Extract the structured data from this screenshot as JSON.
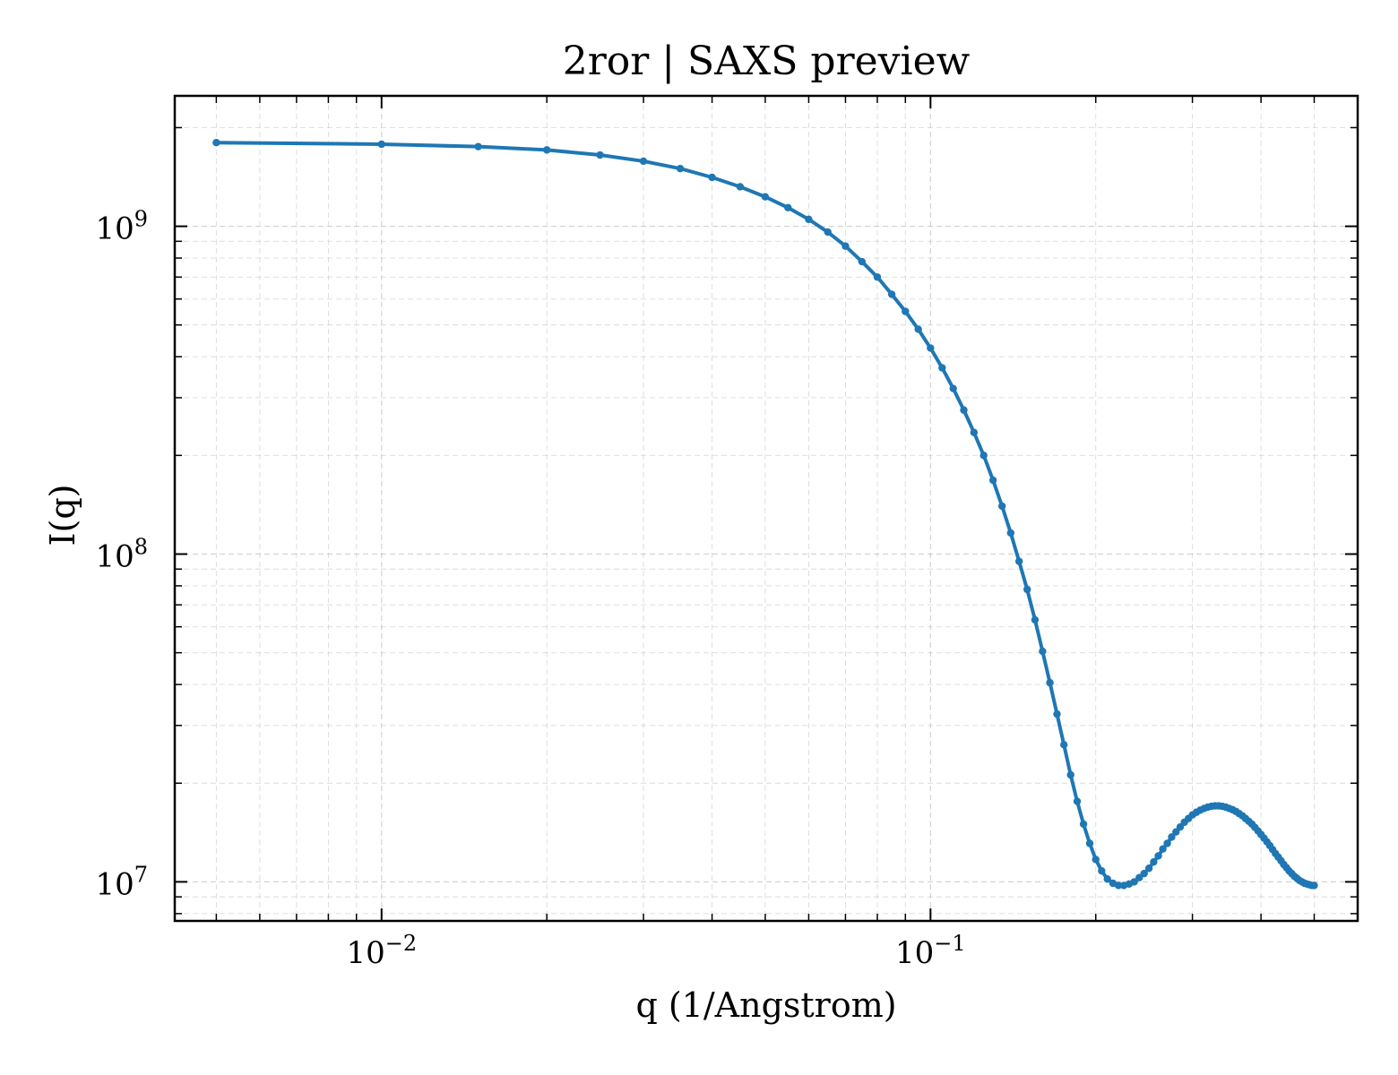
{
  "chart_data": {
    "type": "line",
    "title": "2ror | SAXS preview",
    "xlabel": "q (1/Angstrom)",
    "ylabel": "I(q)",
    "xscale": "log",
    "yscale": "log",
    "xlim": [
      0.0042,
      0.6
    ],
    "ylim": [
      7600000.0,
      2500000000.0
    ],
    "grid": true,
    "x_tick_labels": [
      {
        "value": 0.01,
        "base": "10",
        "exp": "−2"
      },
      {
        "value": 0.1,
        "base": "10",
        "exp": "−1"
      }
    ],
    "y_tick_labels": [
      {
        "value": 10000000.0,
        "base": "10",
        "exp": "7"
      },
      {
        "value": 100000000.0,
        "base": "10",
        "exp": "8"
      },
      {
        "value": 1000000000.0,
        "base": "10",
        "exp": "9"
      }
    ],
    "series": [
      {
        "color": "#1f77b4",
        "x": [
          0.005,
          0.01,
          0.015,
          0.02,
          0.025,
          0.03,
          0.035,
          0.04,
          0.045,
          0.05,
          0.055,
          0.06,
          0.065,
          0.07,
          0.075,
          0.08,
          0.085,
          0.09,
          0.095,
          0.1,
          0.105,
          0.11,
          0.115,
          0.12,
          0.125,
          0.13,
          0.135,
          0.14,
          0.145,
          0.15,
          0.155,
          0.16,
          0.165,
          0.17,
          0.175,
          0.18,
          0.185,
          0.19,
          0.195,
          0.2,
          0.205,
          0.21,
          0.215,
          0.22,
          0.225,
          0.23,
          0.235,
          0.24,
          0.245,
          0.25,
          0.255,
          0.26,
          0.265,
          0.27,
          0.275,
          0.28,
          0.285,
          0.29,
          0.295,
          0.3,
          0.305,
          0.31,
          0.315,
          0.32,
          0.325,
          0.33,
          0.335,
          0.34,
          0.345,
          0.35,
          0.355,
          0.36,
          0.365,
          0.37,
          0.375,
          0.38,
          0.385,
          0.39,
          0.395,
          0.4,
          0.405,
          0.41,
          0.415,
          0.42,
          0.425,
          0.43,
          0.435,
          0.44,
          0.445,
          0.45,
          0.455,
          0.46,
          0.465,
          0.47,
          0.475,
          0.48,
          0.485,
          0.49,
          0.495,
          0.5
        ],
        "y": [
          1800000000.0,
          1780000000.0,
          1750000000.0,
          1710000000.0,
          1650000000.0,
          1580000000.0,
          1500000000.0,
          1410000000.0,
          1320000000.0,
          1230000000.0,
          1140000000.0,
          1050000000.0,
          960000000.0,
          870000000.0,
          780000000.0,
          700000000.0,
          620000000.0,
          550000000.0,
          485000000.0,
          425000000.0,
          370000000.0,
          320000000.0,
          275000000.0,
          235000000.0,
          200000000.0,
          168000000.0,
          140000000.0,
          116000000.0,
          95000000.0,
          78000000.0,
          63000000.0,
          50500000.0,
          40500000.0,
          32500000.0,
          26200000.0,
          21200000.0,
          17600000.0,
          15000000.0,
          13100000.0,
          11700000.0,
          10800000.0,
          10200000.0,
          9900000.0,
          9750000.0,
          9750000.0,
          9850000.0,
          10000000.0,
          10300000.0,
          10600000.0,
          11000000.0,
          11500000.0,
          12000000.0,
          12600000.0,
          13100000.0,
          13700000.0,
          14200000.0,
          14700000.0,
          15200000.0,
          15600000.0,
          16000000.0,
          16300000.0,
          16550000.0,
          16750000.0,
          16900000.0,
          17000000.0,
          17050000.0,
          17050000.0,
          17000000.0,
          16900000.0,
          16750000.0,
          16600000.0,
          16400000.0,
          16150000.0,
          15900000.0,
          15600000.0,
          15300000.0,
          15000000.0,
          14650000.0,
          14300000.0,
          13950000.0,
          13600000.0,
          13250000.0,
          12900000.0,
          12550000.0,
          12200000.0,
          11900000.0,
          11600000.0,
          11300000.0,
          11050000.0,
          10800000.0,
          10600000.0,
          10400000.0,
          10250000.0,
          10100000.0,
          10000000.0,
          9900000.0,
          9850000.0,
          9800000.0,
          9750000.0,
          9750000.0
        ]
      }
    ]
  }
}
